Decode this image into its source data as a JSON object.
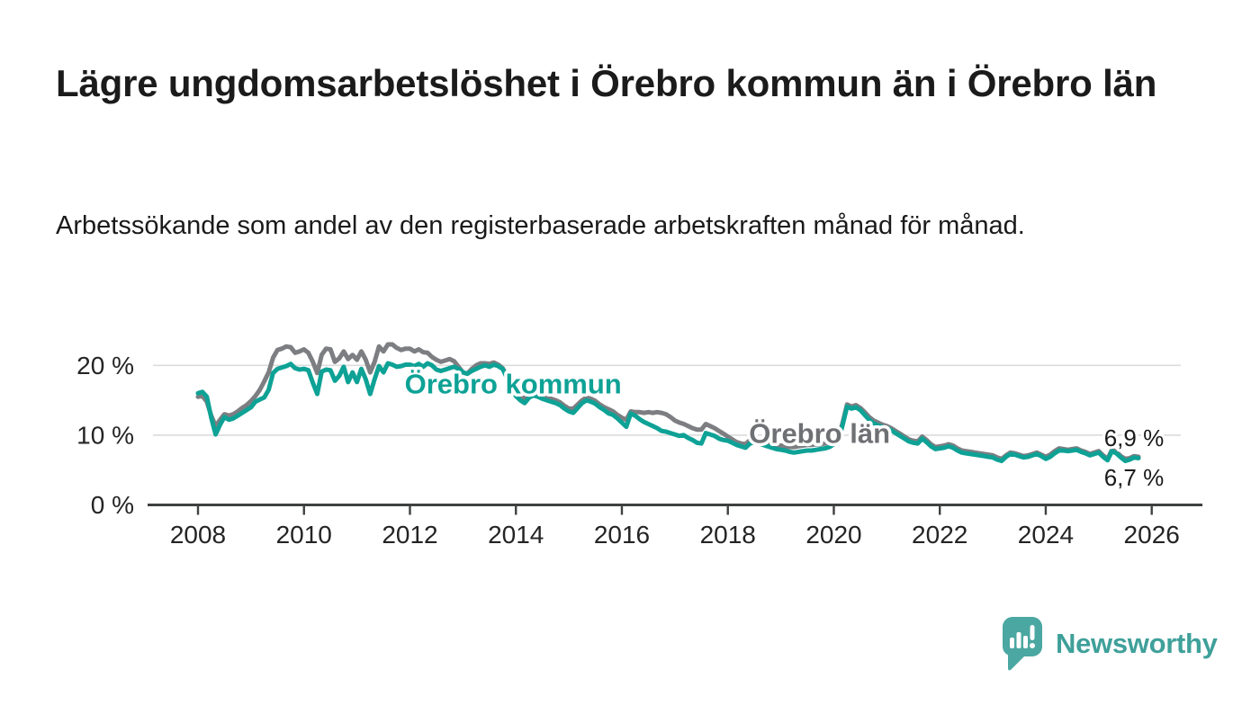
{
  "header": {
    "title": "Lägre ungdomsarbetslöshet i Örebro kommun än i Örebro län",
    "subtitle": "Arbetssökande som andel av den registerbaserade arbetskraften månad för månad."
  },
  "branding": {
    "logo_text": "Newsworthy",
    "logo_color": "#4ba7a1",
    "logo_text_color": "#3fa09a"
  },
  "chart_data": {
    "type": "line",
    "title": "Lägre ungdomsarbetslöshet i Örebro kommun än i Örebro län",
    "subtitle": "Arbetssökande som andel av den registerbaserade arbetskraften månad för månad.",
    "unit": "%",
    "grid": true,
    "legend_position": "inline-labels",
    "x": {
      "start_year": 2008,
      "points_per_year": 12,
      "end_point": "2025-10",
      "tick_years": [
        2008,
        2010,
        2012,
        2014,
        2016,
        2018,
        2020,
        2022,
        2024,
        2026
      ],
      "tick_labels": [
        "2008",
        "2010",
        "2012",
        "2014",
        "2016",
        "2018",
        "2020",
        "2022",
        "2024",
        "2026"
      ]
    },
    "y": {
      "ylim": [
        0,
        24
      ],
      "ticks": [
        {
          "value": 0,
          "label": "0 %"
        },
        {
          "value": 10,
          "label": "10 %"
        },
        {
          "value": 20,
          "label": "20 %"
        }
      ]
    },
    "series": [
      {
        "name": "Örebro län",
        "color": "#7d7e82",
        "end_value_label": "6,9 %",
        "values": [
          15.5,
          15.6,
          14.8,
          12.8,
          11.3,
          12.2,
          13.0,
          12.8,
          13.0,
          13.4,
          13.9,
          14.3,
          14.9,
          15.6,
          16.5,
          17.7,
          19.0,
          21.1,
          22.2,
          22.4,
          22.7,
          22.6,
          21.8,
          22.0,
          22.3,
          21.8,
          20.5,
          18.9,
          21.5,
          22.4,
          22.3,
          20.5,
          21.0,
          22.0,
          20.9,
          21.5,
          20.8,
          22.0,
          20.8,
          19.0,
          20.5,
          22.7,
          22.0,
          23.0,
          23.0,
          22.5,
          22.2,
          22.4,
          22.4,
          22.0,
          22.3,
          21.9,
          21.8,
          21.2,
          20.8,
          20.5,
          20.7,
          20.9,
          20.6,
          19.8,
          19.0,
          18.8,
          19.5,
          20.0,
          20.3,
          20.3,
          20.2,
          20.4,
          20.1,
          19.6,
          18.4,
          17.2,
          16.3,
          15.8,
          15.3,
          15.9,
          16.1,
          15.9,
          15.7,
          15.5,
          15.2,
          15.0,
          14.7,
          14.2,
          13.8,
          13.8,
          14.4,
          15.0,
          15.4,
          15.2,
          14.9,
          14.4,
          14.0,
          13.7,
          13.4,
          12.9,
          12.5,
          12.2,
          13.4,
          13.3,
          13.3,
          13.2,
          13.3,
          13.2,
          13.3,
          13.2,
          13.0,
          12.6,
          12.1,
          11.8,
          11.6,
          11.3,
          11.0,
          10.8,
          10.8,
          11.6,
          11.3,
          11.0,
          10.6,
          10.2,
          9.8,
          9.4,
          9.0,
          8.8,
          8.7,
          9.3,
          9.5,
          9.2,
          9.0,
          8.8,
          8.6,
          8.5,
          8.5,
          8.4,
          8.3,
          8.3,
          8.4,
          8.5,
          8.6,
          8.6,
          8.7,
          8.7,
          8.8,
          9.0,
          9.3,
          9.6,
          11.8,
          14.4,
          14.1,
          14.3,
          13.9,
          13.3,
          12.6,
          12.1,
          11.8,
          11.5,
          11.3,
          11.0,
          10.6,
          10.2,
          9.8,
          9.4,
          9.2,
          9.1,
          9.8,
          9.3,
          8.7,
          8.3,
          8.4,
          8.5,
          8.7,
          8.5,
          8.1,
          7.8,
          7.7,
          7.6,
          7.5,
          7.4,
          7.3,
          7.2,
          7.1,
          6.8,
          6.6,
          7.1,
          7.5,
          7.4,
          7.2,
          7.0,
          7.1,
          7.3,
          7.5,
          7.2,
          6.9,
          7.2,
          7.7,
          8.1,
          8.0,
          7.9,
          8.0,
          8.1,
          7.8,
          7.6,
          7.3,
          7.5,
          7.7,
          7.1,
          6.6,
          7.9,
          7.6,
          7.0,
          6.6,
          6.7,
          7.0,
          6.9
        ]
      },
      {
        "name": "Örebro kommun",
        "color": "#0ea296",
        "end_value_label": "6,7 %",
        "values": [
          16.0,
          16.2,
          15.5,
          12.5,
          10.1,
          11.5,
          12.6,
          12.2,
          12.4,
          12.8,
          13.2,
          13.6,
          14.0,
          14.8,
          15.1,
          15.4,
          16.5,
          18.9,
          19.5,
          19.7,
          19.9,
          20.2,
          19.6,
          19.4,
          19.5,
          19.3,
          17.5,
          15.9,
          19.1,
          19.4,
          19.3,
          17.8,
          18.5,
          19.8,
          17.6,
          19.0,
          17.6,
          19.5,
          18.0,
          15.9,
          18.0,
          19.9,
          19.0,
          20.3,
          20.1,
          19.8,
          19.9,
          20.1,
          20.1,
          19.9,
          20.2,
          19.8,
          20.3,
          20.0,
          19.4,
          19.2,
          19.4,
          19.6,
          19.8,
          19.5,
          19.0,
          18.8,
          19.2,
          19.5,
          19.8,
          20.0,
          19.8,
          20.1,
          19.9,
          19.5,
          18.2,
          16.8,
          15.6,
          15.0,
          14.6,
          15.4,
          15.7,
          15.5,
          15.2,
          15.0,
          14.8,
          14.6,
          14.3,
          13.8,
          13.4,
          13.2,
          13.9,
          14.6,
          15.0,
          14.8,
          14.5,
          14.0,
          13.6,
          13.1,
          12.9,
          12.4,
          11.8,
          11.2,
          13.1,
          12.8,
          12.3,
          11.9,
          11.6,
          11.3,
          11.0,
          10.6,
          10.5,
          10.3,
          10.1,
          9.9,
          10.0,
          9.6,
          9.3,
          8.9,
          8.8,
          10.3,
          10.1,
          9.9,
          9.5,
          9.3,
          9.2,
          8.9,
          8.6,
          8.4,
          8.2,
          8.8,
          9.0,
          8.8,
          8.6,
          8.4,
          8.2,
          8.0,
          7.9,
          7.8,
          7.6,
          7.5,
          7.6,
          7.7,
          7.8,
          7.8,
          7.9,
          8.0,
          8.1,
          8.3,
          8.7,
          9.0,
          11.5,
          14.1,
          13.8,
          14.0,
          13.6,
          12.9,
          12.2,
          11.7,
          11.4,
          11.2,
          11.0,
          10.7,
          10.3,
          9.9,
          9.5,
          9.1,
          8.9,
          8.8,
          9.5,
          9.0,
          8.4,
          8.0,
          8.1,
          8.2,
          8.4,
          8.2,
          7.8,
          7.5,
          7.4,
          7.3,
          7.2,
          7.1,
          7.0,
          6.9,
          6.8,
          6.5,
          6.3,
          6.9,
          7.3,
          7.2,
          7.0,
          6.8,
          6.9,
          7.1,
          7.3,
          7.0,
          6.6,
          6.9,
          7.4,
          7.8,
          7.8,
          7.7,
          7.8,
          7.9,
          7.6,
          7.4,
          7.1,
          7.3,
          7.5,
          6.9,
          6.4,
          7.7,
          7.4,
          6.8,
          6.3,
          6.5,
          6.8,
          6.7
        ]
      }
    ],
    "annotations": [
      {
        "text": "Örebro kommun",
        "color": "#0ea296",
        "year": 2011.9,
        "value": 17.35,
        "style": "series-label"
      },
      {
        "text": "Örebro län",
        "color": "#6f7074",
        "year": 2018.4,
        "value": 10.25,
        "style": "series-label"
      },
      {
        "text": "6,9 %",
        "color": "#1a1a1a",
        "year": 2025.1,
        "value": 9.6,
        "style": "value-label"
      },
      {
        "text": "6,7 %",
        "color": "#1a1a1a",
        "year": 2025.1,
        "value": 3.95,
        "style": "value-label"
      }
    ]
  }
}
